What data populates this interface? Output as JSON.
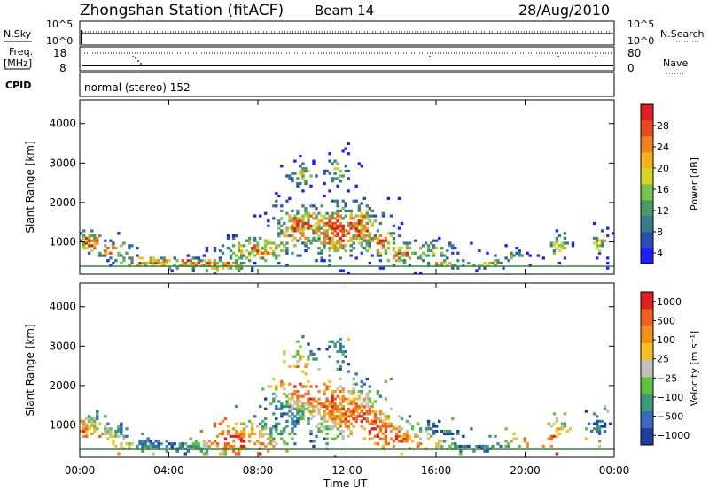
{
  "header": {
    "title": "Zhongshan Station (fitACF)",
    "beam": "Beam 14",
    "date": "28/Aug/2010"
  },
  "nsky_panel": {
    "left_label": "N.Sky",
    "right_label": "N.Search",
    "ticks": [
      "10^5",
      "10^0"
    ],
    "right_ticks": [
      "10^5",
      "10^0"
    ]
  },
  "freq_panel": {
    "label_line1": "Freq.",
    "label_line2": "[MHz]",
    "left_ticks": [
      "18",
      "8"
    ],
    "right_label": "Nave",
    "right_ticks": [
      "80",
      "0"
    ]
  },
  "cpid": {
    "label": "CPID",
    "value": "normal (stereo) 152"
  },
  "chart_data": [
    {
      "type": "heatmap",
      "name": "power",
      "ylabel": "Slant Range [km]",
      "yticks": [
        "4000",
        "3000",
        "2000",
        "1000"
      ],
      "ytick_values": [
        4000,
        3000,
        2000,
        1000
      ],
      "ylim": [
        180,
        4600
      ],
      "xlim_hours": [
        0,
        24
      ],
      "colorbar": {
        "label": "Power [dB]",
        "ticks": [
          "28",
          "24",
          "20",
          "16",
          "12",
          "8",
          "4"
        ],
        "colors": [
          "#1e1eff",
          "#2a4fb4",
          "#3a7a8a",
          "#4a9a6a",
          "#7ac24a",
          "#d4d42a",
          "#f0b020",
          "#f08020",
          "#e84a20",
          "#e02020"
        ],
        "range": [
          0,
          30
        ]
      }
    },
    {
      "type": "heatmap",
      "name": "velocity",
      "ylabel": "Slant Range [km]",
      "yticks": [
        "4000",
        "3000",
        "2000",
        "1000"
      ],
      "ytick_values": [
        4000,
        3000,
        2000,
        1000
      ],
      "ylim": [
        180,
        4600
      ],
      "xlim_hours": [
        0,
        24
      ],
      "colorbar": {
        "label": "Velocity [m s⁻¹]",
        "ticks": [
          "1000",
          "500",
          "100",
          "25",
          "−25",
          "−100",
          "−500",
          "−1000"
        ],
        "colors": [
          "#1e3ea0",
          "#3a6ac0",
          "#3a9a7a",
          "#60c040",
          "#c0c0c0",
          "#f0c020",
          "#f0901a",
          "#f06020",
          "#e02020"
        ]
      }
    }
  ],
  "x_axis": {
    "ticks": [
      "00:00",
      "04:00",
      "08:00",
      "12:00",
      "16:00",
      "20:00",
      "00:00"
    ],
    "tick_hours": [
      0,
      4,
      8,
      12,
      16,
      20,
      24
    ],
    "label": "Time UT"
  }
}
